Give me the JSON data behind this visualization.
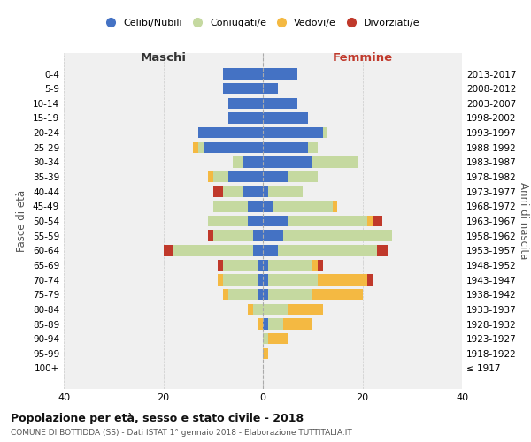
{
  "age_groups": [
    "100+",
    "95-99",
    "90-94",
    "85-89",
    "80-84",
    "75-79",
    "70-74",
    "65-69",
    "60-64",
    "55-59",
    "50-54",
    "45-49",
    "40-44",
    "35-39",
    "30-34",
    "25-29",
    "20-24",
    "15-19",
    "10-14",
    "5-9",
    "0-4"
  ],
  "birth_years": [
    "≤ 1917",
    "1918-1922",
    "1923-1927",
    "1928-1932",
    "1933-1937",
    "1938-1942",
    "1943-1947",
    "1948-1952",
    "1953-1957",
    "1958-1962",
    "1963-1967",
    "1968-1972",
    "1973-1977",
    "1978-1982",
    "1983-1987",
    "1988-1992",
    "1993-1997",
    "1998-2002",
    "2003-2007",
    "2008-2012",
    "2013-2017"
  ],
  "colors": {
    "celibi": "#4472c4",
    "coniugati": "#c5d9a0",
    "vedovi": "#f4b942",
    "divorziati": "#c0392b"
  },
  "males": {
    "celibi": [
      0,
      0,
      0,
      0,
      0,
      1,
      1,
      1,
      2,
      2,
      3,
      3,
      4,
      7,
      4,
      12,
      13,
      7,
      7,
      8,
      8
    ],
    "coniugati": [
      0,
      0,
      0,
      0,
      2,
      6,
      7,
      7,
      16,
      8,
      8,
      7,
      4,
      3,
      2,
      1,
      0,
      0,
      0,
      0,
      0
    ],
    "vedovi": [
      0,
      0,
      0,
      1,
      1,
      1,
      1,
      0,
      0,
      0,
      0,
      0,
      0,
      1,
      0,
      1,
      0,
      0,
      0,
      0,
      0
    ],
    "divorziati": [
      0,
      0,
      0,
      0,
      0,
      0,
      0,
      1,
      2,
      1,
      0,
      0,
      2,
      0,
      0,
      0,
      0,
      0,
      0,
      0,
      0
    ]
  },
  "females": {
    "celibi": [
      0,
      0,
      0,
      1,
      0,
      1,
      1,
      1,
      3,
      4,
      5,
      2,
      1,
      5,
      10,
      9,
      12,
      9,
      7,
      3,
      7
    ],
    "coniugati": [
      0,
      0,
      1,
      3,
      5,
      9,
      10,
      9,
      20,
      22,
      16,
      12,
      7,
      6,
      9,
      2,
      1,
      0,
      0,
      0,
      0
    ],
    "vedovi": [
      0,
      1,
      4,
      6,
      7,
      10,
      10,
      1,
      0,
      0,
      1,
      1,
      0,
      0,
      0,
      0,
      0,
      0,
      0,
      0,
      0
    ],
    "divorziati": [
      0,
      0,
      0,
      0,
      0,
      0,
      1,
      1,
      2,
      0,
      2,
      0,
      0,
      0,
      0,
      0,
      0,
      0,
      0,
      0,
      0
    ]
  },
  "title": "Popolazione per età, sesso e stato civile - 2018",
  "subtitle": "COMUNE DI BOTTIDDA (SS) - Dati ISTAT 1° gennaio 2018 - Elaborazione TUTTITALIA.IT",
  "xlabel_left": "Maschi",
  "xlabel_right": "Femmine",
  "ylabel_left": "Fasce di età",
  "ylabel_right": "Anni di nascita",
  "xlim": 40,
  "legend_labels": [
    "Celibi/Nubili",
    "Coniugati/e",
    "Vedovi/e",
    "Divorziati/e"
  ],
  "background_color": "#ffffff",
  "grid_color": "#cccccc"
}
